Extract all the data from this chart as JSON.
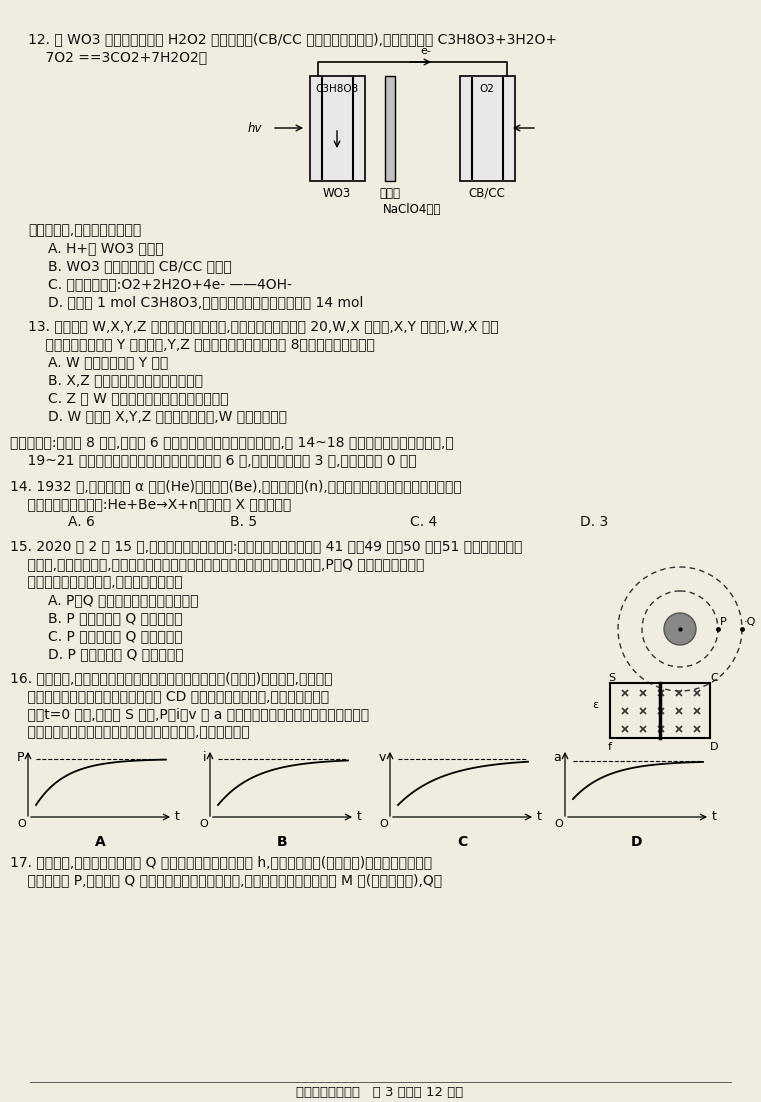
{
  "background": "#f0ece0",
  "text_color": "#111111",
  "page_footer": "龟三理科综合试卷   第 3 页（共 12 页）",
  "q12_line1": "12. 用 WO3 作光催化剂制备 H2O2 的装置如图(CB/CC 为负载炭黑的碳布),电池总反应为 C3H8O3+3H2O+",
  "q12_line2": "    7O2 ==3CO2+7H2O2。",
  "q12_q": "装置工作时,下列说法正确的是",
  "q12_A": "A. H+向 WO3 极移动",
  "q12_B": "B. WO3 极上的电势比 CB/CC 上的高",
  "q12_C": "C. 正极发生反应:O2+2H2O+4e- ——4OH-",
  "q12_D": "D. 每消耗 1 mol C3H8O3,理论上转移电子的物质的量为 14 mol",
  "q13_line1": "13. 主族元素 W,X,Y,Z 的原子序数依次增大,且原子序数均不超过 20,W,X 同周期,X,Y 同主族,W,X 的核",
  "q13_line2": "    外电子数之和等于 Y 的质子数,Y,Z 的最外层电子数之和等于 8。下列说法正确的是",
  "q13_A": "A. W 的单质沸点比 Y 的高",
  "q13_B": "B. X,Z 形成的化合物的水溶液呈碱性",
  "q13_C": "C. Z 与 W 形成的化合物中一定不含共价键",
  "q13_D": "D. W 分别与 X,Y,Z 形成的化合物中,W 的化合价相同",
  "sec2_line1": "二、选择题:本题共 8 小题,每小题 6 分。在每小题给出的四个选项中,第 14~18 题只有一项符合题目要求,第",
  "sec2_line2": "    19~21 题有多项符合题目要求。全部选对的得 6 分,选对但不全的得 3 分,有选错的得 0 分。",
  "q14_line1": "14. 1932 年,查德威克用 α 粒子(He)袭击铍核(Be),发现了中子(n),并因这一伟大发现获得诺贝尔物理学",
  "q14_line2": "    奖。该核反应方程为:He+Be→X+n。原子核 X 的中子数为",
  "q14_A": "A. 6",
  "q14_B": "B. 5",
  "q14_C": "C. 4",
  "q14_D": "D. 3",
  "q15_line1": "15. 2020 年 2 月 15 日,北斗运控一线发来战报:北斗卫星导航系统的第 41 颗、49 颗、50 颗、51 颗卫星已完成在",
  "q15_line2": "    轨测试,正式入网工作,继续提升北斗卫星导航系统稳定运行服务能力。如图所示,P、Q 为两颗绕地球做匀",
  "q15_line3": "    速圆周运动的北斗卫星,下列说法正确的是",
  "q15_A": "A. P、Q 运行过程中的距离保持不变",
  "q15_B": "B. P 的线速度比 Q 的线速度小",
  "q15_C": "C. P 的角速度比 Q 的角速度小",
  "q15_D": "D. P 的加速度比 Q 的加速度大",
  "q16_line1": "16. 如图所示,固定于绝缘水平面内的光滑平行金属导轨(足够长)电阻不计,导轨间存",
  "q16_line2": "    在方向竖直向下的匀强磁场。导体棒 CD 垂直于导轨静止放置,且与导轨接触良",
  "q16_line3": "    好。t=0 时刻,将开关 S 闭合,P、i、v 和 a 分别表示导体棒的电功率、导体棒中的",
  "q16_line4": "    电流、导体棒的速度和加速度。下列四幅图中,可能正确的是",
  "q17_line1": "17. 如图所示,水平传送带的右端 Q 与水平地面间的高度差为 h,现将一小滑块(视为质点)无初速度地放在传",
  "q17_line2": "    送带的左端 P,滑块到达 Q 点后恰好不再与传送带接触,离开传送带落到地面上的 M 点(图中未画出),Q、"
}
